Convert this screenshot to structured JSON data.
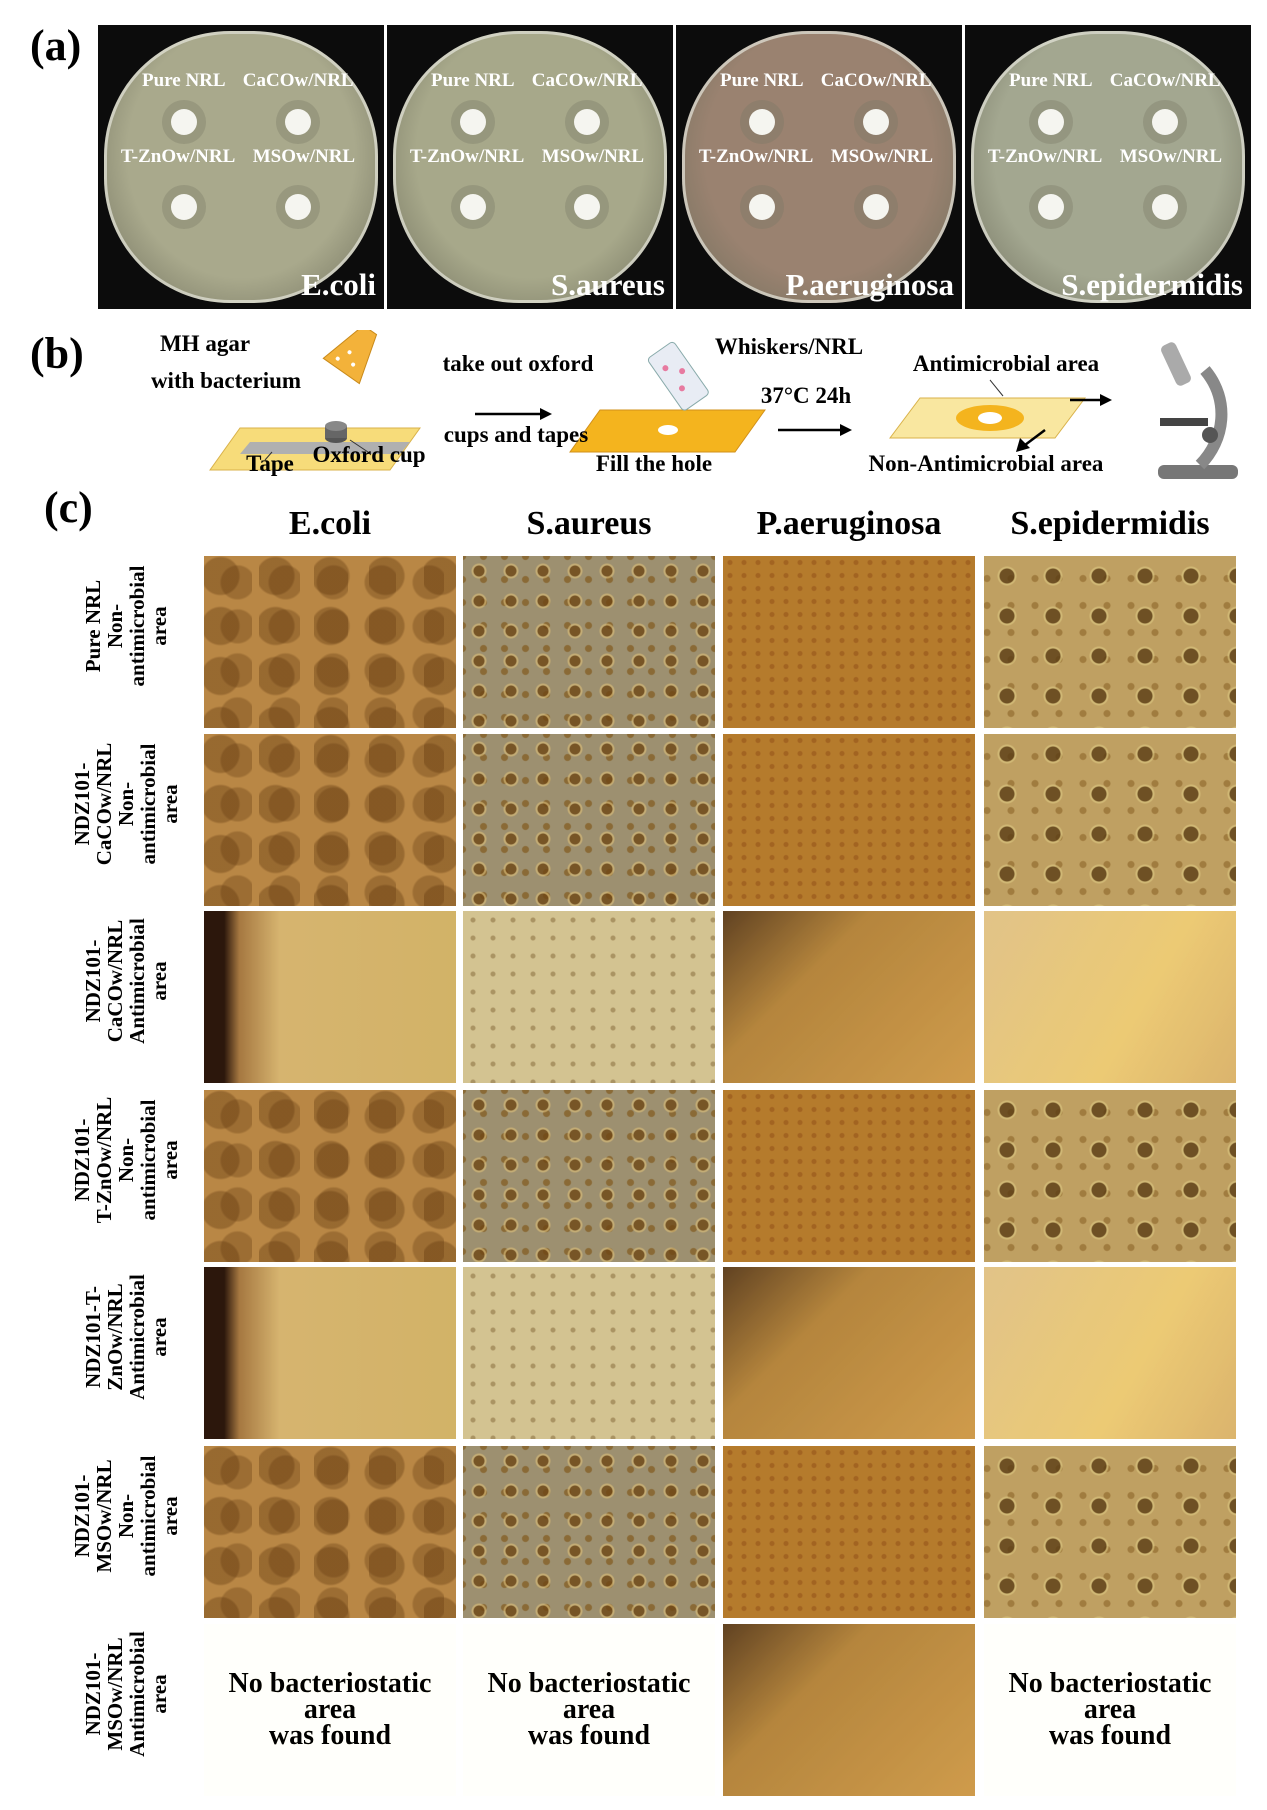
{
  "panel_a": {
    "label": "(a)",
    "plates": [
      {
        "organism": "E.coli",
        "labels": [
          "Pure NRL",
          "CaCOw/NRL",
          "T-ZnOw/NRL",
          "MSOw/NRL"
        ]
      },
      {
        "organism": "S.aureus",
        "labels": [
          "Pure NRL",
          "CaCOw/NRL",
          "T-ZnOw/NRL",
          "MSOw/NRL"
        ]
      },
      {
        "organism": "P.aeruginosa",
        "labels": [
          "Pure NRL",
          "CaCOw/NRL",
          "T-ZnOw/NRL",
          "MSOw/NRL"
        ]
      },
      {
        "organism": "S.epidermidis",
        "labels": [
          "Pure NRL",
          "CaCOw/NRL",
          "T-ZnOw/NRL",
          "MSOw/NRL"
        ]
      }
    ]
  },
  "panel_b": {
    "label": "(b)",
    "agar": [
      "MH agar",
      "with bacterium"
    ],
    "step1": [
      "take out oxford",
      "cups and tapes"
    ],
    "tape": "Tape",
    "oxford_cup": "Oxford cup",
    "whiskers": "Whiskers/NRL",
    "fill": "Fill the hole",
    "incubation": "37°C 24h",
    "antimicrobial": "Antimicrobial area",
    "non_antimicrobial": "Non-Antimicrobial area"
  },
  "panel_c": {
    "label": "(c)",
    "columns": [
      "E.coli",
      "S.aureus",
      "P.aeruginosa",
      "S.epidermidis"
    ],
    "rows": [
      [
        "Pure NRL",
        "Non-",
        "antimicrobial",
        "area"
      ],
      [
        "NDZ101-",
        "CaCOw/NRL",
        "Non-",
        "antimicrobial",
        "area"
      ],
      [
        "NDZ101-",
        "CaCOw/NRL",
        "Antimicrobial",
        "area"
      ],
      [
        "NDZ101-",
        "T-ZnOw/NRL",
        "Non-",
        "antimicrobial",
        "area"
      ],
      [
        "NDZ101-T-",
        "ZnOw/NRL",
        "Antimicrobial",
        "area"
      ],
      [
        "NDZ101-",
        "MSOw/NRL",
        "Non-",
        "antimicrobial",
        "area"
      ],
      [
        "NDZ101-",
        "MSOw/NRL",
        "Antimicrobial",
        "area"
      ]
    ],
    "cells": [
      [
        null,
        null,
        null,
        null
      ],
      [
        null,
        null,
        null,
        null
      ],
      [
        null,
        null,
        null,
        null
      ],
      [
        null,
        null,
        null,
        null
      ],
      [
        null,
        null,
        null,
        null
      ],
      [
        null,
        null,
        null,
        null
      ],
      [
        [
          "No bacteriostatic",
          "area",
          "was found"
        ],
        [
          "No bacteriostatic",
          "area",
          "was found"
        ],
        null,
        [
          "No bacteriostatic",
          "area",
          "was found"
        ]
      ]
    ]
  }
}
